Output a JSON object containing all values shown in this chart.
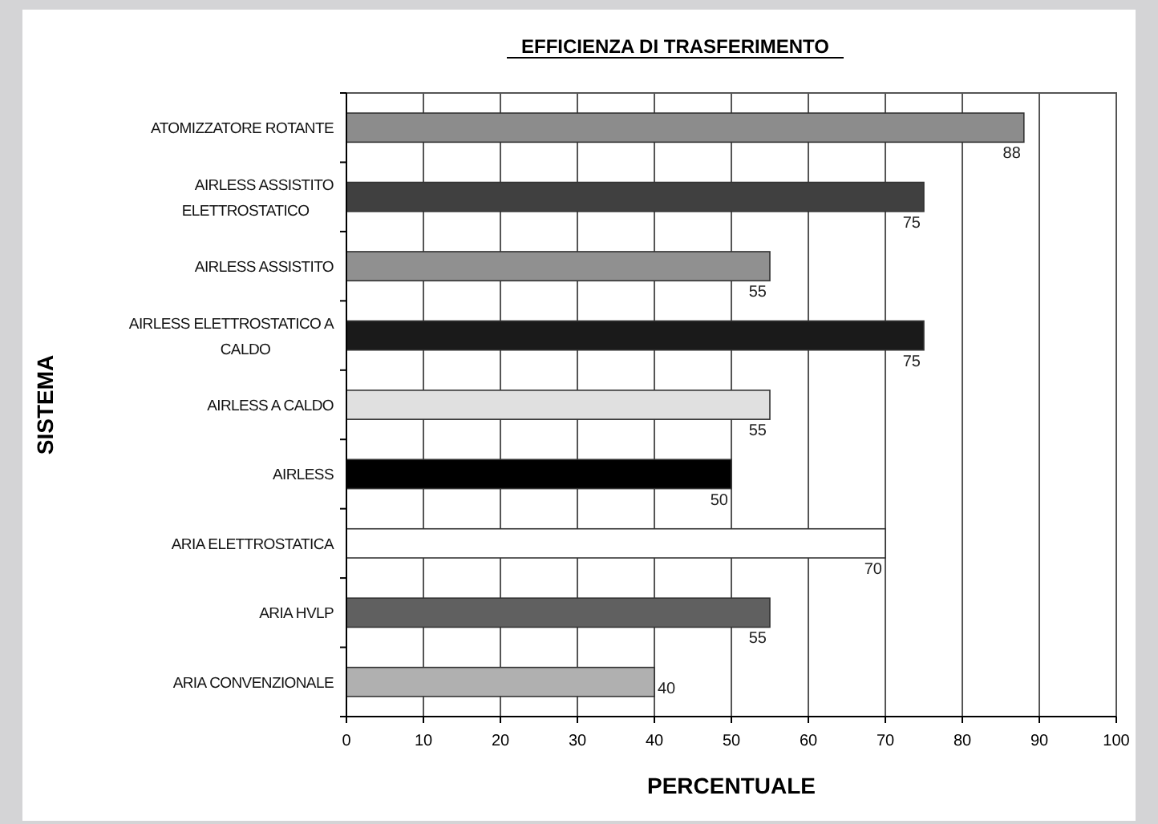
{
  "chart_data": {
    "type": "bar",
    "orientation": "horizontal",
    "title": "EFFICIENZA DI TRASFERIMENTO",
    "xlabel": "PERCENTUALE",
    "ylabel": "SISTEMA",
    "categories": [
      "ATOMIZZATORE ROTANTE",
      "AIRLESS ASSISTITO ELETTROSTATICO",
      "AIRLESS ASSISTITO",
      "AIRLESS ELETTROSTATICO A CALDO",
      "AIRLESS A CALDO",
      "AIRLESS",
      "ARIA ELETTROSTATICA",
      "ARIA HVLP",
      "ARIA CONVENZIONALE"
    ],
    "values": [
      88,
      75,
      55,
      75,
      55,
      50,
      70,
      55,
      40
    ],
    "colors": [
      "#8c8c8c",
      "#404040",
      "#909090",
      "#1a1a1a",
      "#e0e0e0",
      "#000000",
      "#ffffff",
      "#606060",
      "#b0b0b0"
    ],
    "xlim": [
      0,
      100
    ],
    "xticks": [
      0,
      10,
      20,
      30,
      40,
      50,
      60,
      70,
      80,
      90,
      100
    ],
    "grid": "x",
    "data_labels": true
  }
}
